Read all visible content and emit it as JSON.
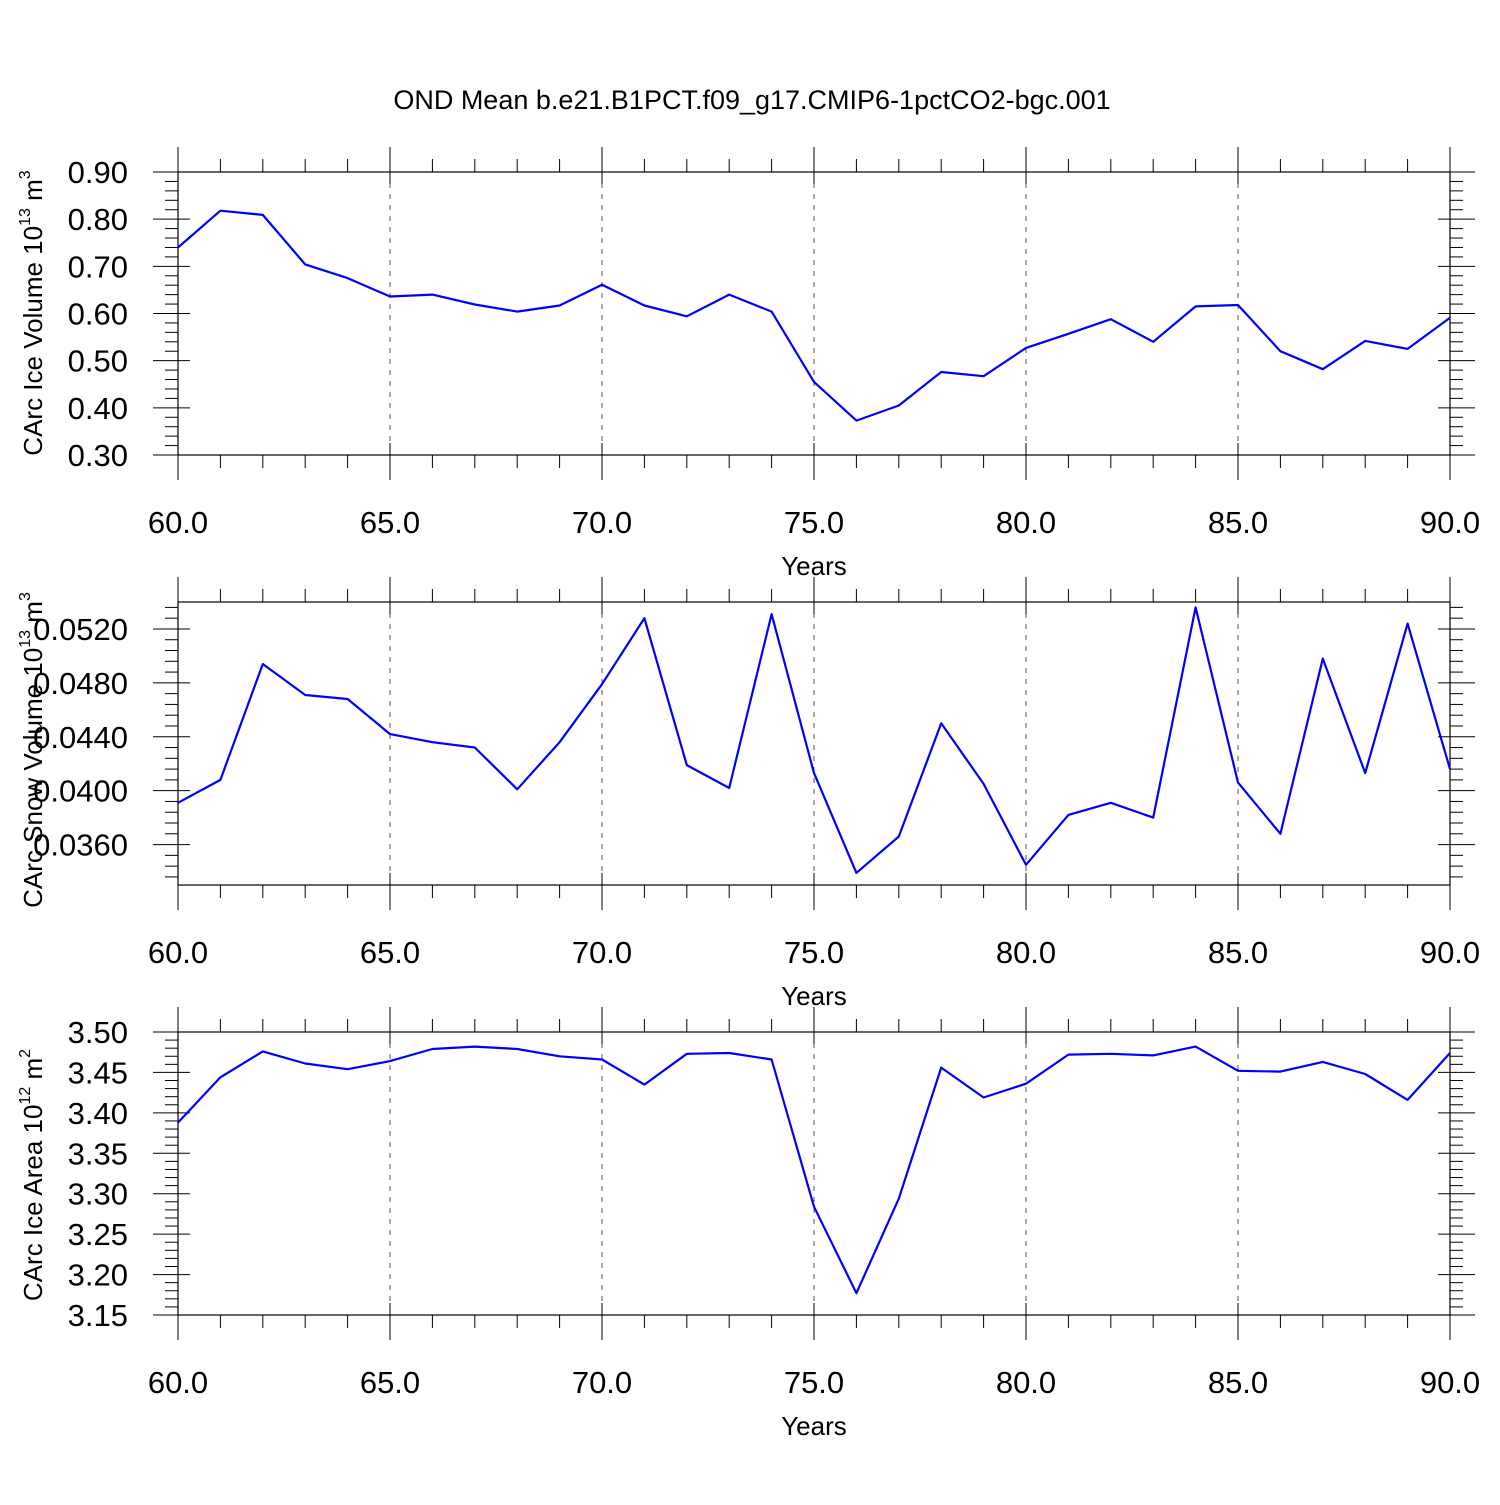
{
  "title": "OND Mean b.e21.B1PCT.f09_g17.CMIP6-1pctCO2-bgc.001",
  "colors": {
    "line": "#0000ff",
    "frame": "#000000",
    "grid": "#555555"
  },
  "chart_data": [
    {
      "type": "line",
      "xlabel": "Years",
      "ylabel": {
        "text": "CArc Ice Volume 10",
        "exp": "13",
        "unit": " m",
        "unit_exp": "3"
      },
      "xlim": [
        60,
        90
      ],
      "ylim": [
        0.3,
        0.9
      ],
      "xticks": [
        60,
        65,
        70,
        75,
        80,
        85,
        90
      ],
      "xtick_labels": [
        "60.0",
        "65.0",
        "70.0",
        "75.0",
        "80.0",
        "85.0",
        "90.0"
      ],
      "yticks": [
        0.3,
        0.4,
        0.5,
        0.6,
        0.7,
        0.8,
        0.9
      ],
      "ytick_labels": [
        "0.30",
        "0.40",
        "0.50",
        "0.60",
        "0.70",
        "0.80",
        "0.90"
      ],
      "grid": "vertical-dashed",
      "x": [
        60,
        61,
        62,
        63,
        64,
        65,
        66,
        67,
        68,
        69,
        70,
        71,
        72,
        73,
        74,
        75,
        76,
        77,
        78,
        79,
        80,
        81,
        82,
        83,
        84,
        85,
        86,
        87,
        88,
        89,
        90
      ],
      "values": [
        0.74,
        0.818,
        0.809,
        0.704,
        0.675,
        0.636,
        0.64,
        0.619,
        0.604,
        0.617,
        0.661,
        0.617,
        0.594,
        0.64,
        0.604,
        0.455,
        0.373,
        0.405,
        0.476,
        0.467,
        0.527,
        0.557,
        0.588,
        0.54,
        0.615,
        0.618,
        0.52,
        0.482,
        0.542,
        0.525,
        0.591
      ]
    },
    {
      "type": "line",
      "xlabel": "Years",
      "ylabel": {
        "text": "CArc Snow Volume 10",
        "exp": "13",
        "unit": " m",
        "unit_exp": "3"
      },
      "xlim": [
        60,
        90
      ],
      "ylim": [
        0.033,
        0.054
      ],
      "xticks": [
        60,
        65,
        70,
        75,
        80,
        85,
        90
      ],
      "xtick_labels": [
        "60.0",
        "65.0",
        "70.0",
        "75.0",
        "80.0",
        "85.0",
        "90.0"
      ],
      "yticks": [
        0.036,
        0.04,
        0.044,
        0.048,
        0.052
      ],
      "ytick_labels": [
        "0.0360",
        "0.0400",
        "0.0440",
        "0.0480",
        "0.0520"
      ],
      "grid": "vertical-dashed",
      "x": [
        60,
        61,
        62,
        63,
        64,
        65,
        66,
        67,
        68,
        69,
        70,
        71,
        72,
        73,
        74,
        75,
        76,
        77,
        78,
        79,
        80,
        81,
        82,
        83,
        84,
        85,
        86,
        87,
        88,
        89,
        90
      ],
      "values": [
        0.0391,
        0.0408,
        0.0494,
        0.0471,
        0.0468,
        0.0442,
        0.0436,
        0.0432,
        0.0401,
        0.0436,
        0.0479,
        0.0528,
        0.0419,
        0.0402,
        0.0531,
        0.0413,
        0.0339,
        0.0366,
        0.045,
        0.0405,
        0.0345,
        0.0382,
        0.0391,
        0.038,
        0.0536,
        0.0406,
        0.0368,
        0.0498,
        0.0413,
        0.0524,
        0.0416
      ]
    },
    {
      "type": "line",
      "xlabel": "Years",
      "ylabel": {
        "text": "CArc Ice Area 10",
        "exp": "12",
        "unit": " m",
        "unit_exp": "2"
      },
      "xlim": [
        60,
        90
      ],
      "ylim": [
        3.15,
        3.5
      ],
      "xticks": [
        60,
        65,
        70,
        75,
        80,
        85,
        90
      ],
      "xtick_labels": [
        "60.0",
        "65.0",
        "70.0",
        "75.0",
        "80.0",
        "85.0",
        "90.0"
      ],
      "yticks": [
        3.15,
        3.2,
        3.25,
        3.3,
        3.35,
        3.4,
        3.45,
        3.5
      ],
      "ytick_labels": [
        "3.15",
        "3.20",
        "3.25",
        "3.30",
        "3.35",
        "3.40",
        "3.45",
        "3.50"
      ],
      "grid": "vertical-dashed",
      "x": [
        60,
        61,
        62,
        63,
        64,
        65,
        66,
        67,
        68,
        69,
        70,
        71,
        72,
        73,
        74,
        75,
        76,
        77,
        78,
        79,
        80,
        81,
        82,
        83,
        84,
        85,
        86,
        87,
        88,
        89,
        90
      ],
      "values": [
        3.388,
        3.444,
        3.476,
        3.461,
        3.454,
        3.464,
        3.479,
        3.482,
        3.479,
        3.47,
        3.466,
        3.435,
        3.473,
        3.474,
        3.466,
        3.284,
        3.177,
        3.294,
        3.456,
        3.419,
        3.436,
        3.472,
        3.473,
        3.471,
        3.482,
        3.452,
        3.451,
        3.463,
        3.448,
        3.416,
        3.474
      ]
    }
  ]
}
